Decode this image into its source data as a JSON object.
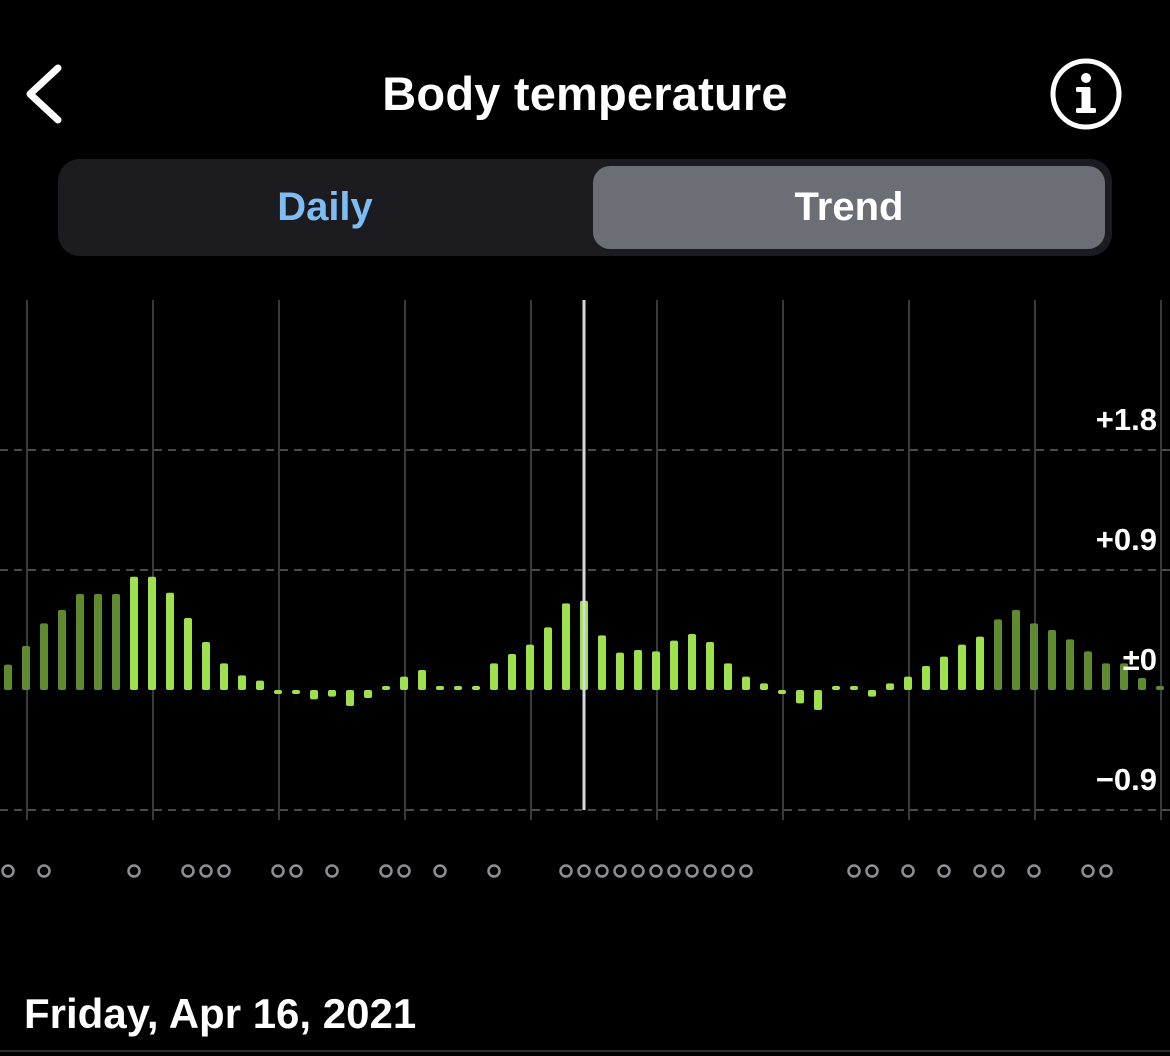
{
  "header": {
    "title": "Body temperature",
    "back_icon": "chevron-left-icon",
    "info_icon": "info-circle-icon"
  },
  "tabs": [
    {
      "label": "Daily",
      "selected": false
    },
    {
      "label": "Trend",
      "selected": true
    }
  ],
  "selected_date": "Friday, Apr 16, 2021",
  "colors": {
    "background": "#000000",
    "bar_bright": "#9fe04f",
    "bar_dim": "#5f8a2f",
    "daily_tab": "#7dbdf4",
    "trend_tab_bg": "#6b6e74",
    "marker": "#8e8e93"
  },
  "chart_data": {
    "type": "bar",
    "y_ticks": [
      "+1.8",
      "+0.9",
      "±0",
      "−0.9"
    ],
    "y_tick_values": [
      1.8,
      0.9,
      0,
      -0.9
    ],
    "ylim": [
      -0.9,
      1.8
    ],
    "grid": true,
    "selected_index": 32,
    "values": [
      0.19,
      0.33,
      0.5,
      0.6,
      0.72,
      0.72,
      0.72,
      0.85,
      0.85,
      0.73,
      0.54,
      0.36,
      0.2,
      0.11,
      0.07,
      -0.03,
      -0.03,
      -0.07,
      -0.05,
      -0.12,
      -0.06,
      0.03,
      0.1,
      0.15,
      0.03,
      0.03,
      0.03,
      0.2,
      0.27,
      0.34,
      0.47,
      0.65,
      0.67,
      0.41,
      0.28,
      0.3,
      0.29,
      0.37,
      0.42,
      0.36,
      0.2,
      0.1,
      0.05,
      -0.03,
      -0.1,
      -0.15,
      0.03,
      0.03,
      -0.05,
      0.05,
      0.1,
      0.18,
      0.25,
      0.34,
      0.4,
      0.53,
      0.6,
      0.5,
      0.45,
      0.38,
      0.29,
      0.2,
      0.2,
      0.09,
      0.03
    ],
    "bar_dim": [
      true,
      true,
      true,
      true,
      true,
      true,
      true,
      false,
      false,
      false,
      false,
      false,
      false,
      false,
      false,
      false,
      false,
      false,
      false,
      false,
      false,
      false,
      false,
      false,
      false,
      false,
      false,
      false,
      false,
      false,
      false,
      false,
      false,
      false,
      false,
      false,
      false,
      false,
      false,
      false,
      false,
      false,
      false,
      false,
      false,
      false,
      false,
      false,
      false,
      false,
      false,
      false,
      false,
      false,
      false,
      true,
      true,
      true,
      true,
      true,
      true,
      true,
      true,
      true,
      true
    ],
    "markers": [
      0,
      2,
      7,
      10,
      11,
      12,
      15,
      16,
      18,
      21,
      22,
      24,
      27,
      31,
      32,
      33,
      34,
      35,
      36,
      37,
      38,
      39,
      40,
      41,
      47,
      48,
      50,
      52,
      54,
      55,
      57,
      60,
      61
    ]
  }
}
